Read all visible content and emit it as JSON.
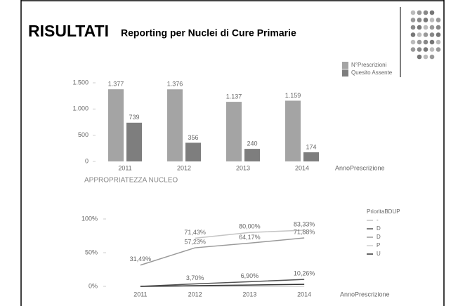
{
  "title": "RISULTATI",
  "subtitle": "Reporting per Nuclei di Cure Primarie",
  "chart_data": [
    {
      "type": "bar",
      "x_label": "AnnoPrescrizione",
      "categories": [
        "2011",
        "2012",
        "2013",
        "2014"
      ],
      "series": [
        {
          "name": "N°Prescrizioni",
          "color": "#a4a4a4",
          "values": [
            1377,
            1376,
            1137,
            1159
          ],
          "value_labels": [
            "1.377",
            "1.376",
            "1.137",
            "1.159"
          ]
        },
        {
          "name": "Quesito Assente",
          "color": "#7e7e7e",
          "values": [
            739,
            356,
            240,
            174
          ]
        }
      ],
      "ylim": [
        0,
        1500
      ],
      "yticks": [
        0,
        500,
        {
          "value": 1000,
          "label": "1.000"
        },
        {
          "value": 1500,
          "label": "1.500"
        }
      ],
      "legend": "top-right"
    },
    {
      "type": "line",
      "title": "APPROPRIATEZZA NUCLEO",
      "x_label": "AnnoPrescrizione",
      "legend_title": "PrioritaBDUP",
      "categories": [
        "2011",
        "2012",
        "2013",
        "2014"
      ],
      "series": [
        {
          "name": "-",
          "color": "#c4c4c4",
          "values": [
            null,
            71.43,
            80.0,
            83.33
          ],
          "value_labels": [
            null,
            "71,43%",
            "80,00%",
            "83,33%"
          ]
        },
        {
          "name": "D",
          "color": "#555555",
          "values": [
            0,
            3.7,
            6.9,
            10.26
          ],
          "value_labels": [
            null,
            "3,70%",
            "6,90%",
            "10,26%"
          ]
        },
        {
          "name": "D",
          "color": "#9a9a9a",
          "values": [
            31.49,
            57.23,
            64.17,
            71.88
          ],
          "value_labels": [
            "31,49%",
            "57,23%",
            "64,17%",
            "71,88%"
          ]
        },
        {
          "name": "P",
          "color": "#d0d0d0",
          "values": [
            0,
            0,
            0,
            0
          ]
        },
        {
          "name": "U",
          "color": "#333333",
          "values": [
            0,
            1,
            2,
            3
          ]
        }
      ],
      "ylim": [
        0,
        100
      ],
      "yticks": [
        {
          "value": 0,
          "label": "0%"
        },
        {
          "value": 50,
          "label": "50%"
        },
        {
          "value": 100,
          "label": "100%"
        }
      ],
      "legend": "right"
    }
  ]
}
